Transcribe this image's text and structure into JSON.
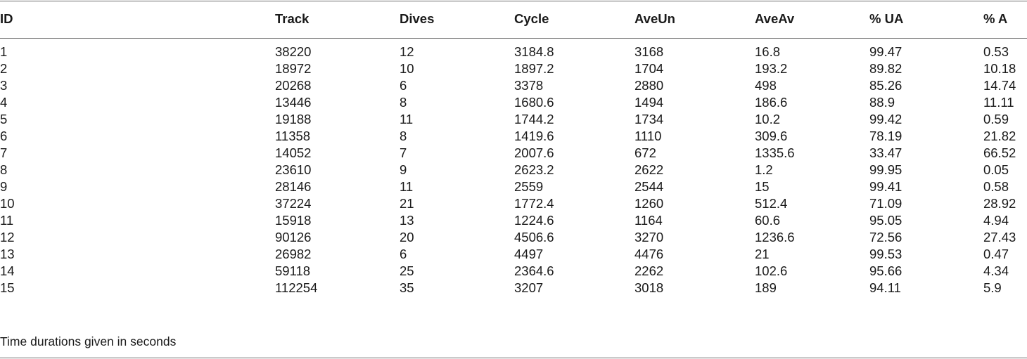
{
  "table": {
    "headers": [
      "ID",
      "Track",
      "Dives",
      "Cycle",
      "AveUn",
      "AveAv",
      "% UA",
      "% A"
    ],
    "rows": [
      [
        "1",
        "38220",
        "12",
        "3184.8",
        "3168",
        "16.8",
        "99.47",
        "0.53"
      ],
      [
        "2",
        "18972",
        "10",
        "1897.2",
        "1704",
        "193.2",
        "89.82",
        "10.18"
      ],
      [
        "3",
        "20268",
        "6",
        "3378",
        "2880",
        "498",
        "85.26",
        "14.74"
      ],
      [
        "4",
        "13446",
        "8",
        "1680.6",
        "1494",
        "186.6",
        "88.9",
        "11.11"
      ],
      [
        "5",
        "19188",
        "11",
        "1744.2",
        "1734",
        "10.2",
        "99.42",
        "0.59"
      ],
      [
        "6",
        "11358",
        "8",
        "1419.6",
        "1110",
        "309.6",
        "78.19",
        "21.82"
      ],
      [
        "7",
        "14052",
        "7",
        "2007.6",
        "672",
        "1335.6",
        "33.47",
        "66.52"
      ],
      [
        "8",
        "23610",
        "9",
        "2623.2",
        "2622",
        "1.2",
        "99.95",
        "0.05"
      ],
      [
        "9",
        "28146",
        "11",
        "2559",
        "2544",
        "15",
        "99.41",
        "0.58"
      ],
      [
        "10",
        "37224",
        "21",
        "1772.4",
        "1260",
        "512.4",
        "71.09",
        "28.92"
      ],
      [
        "11",
        "15918",
        "13",
        "1224.6",
        "1164",
        "60.6",
        "95.05",
        "4.94"
      ],
      [
        "12",
        "90126",
        "20",
        "4506.6",
        "3270",
        "1236.6",
        "72.56",
        "27.43"
      ],
      [
        "13",
        "26982",
        "6",
        "4497",
        "4476",
        "21",
        "99.53",
        "0.47"
      ],
      [
        "14",
        "59118",
        "25",
        "2364.6",
        "2262",
        "102.6",
        "95.66",
        "4.34"
      ],
      [
        "15",
        "112254",
        "35",
        "3207",
        "3018",
        "189",
        "94.11",
        "5.9"
      ]
    ],
    "footnote": "Time durations given in seconds"
  }
}
